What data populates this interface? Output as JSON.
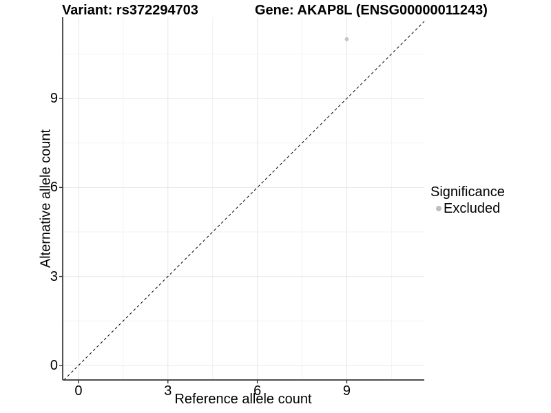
{
  "titles": {
    "variant": "Variant: rs372294703",
    "gene": "Gene: AKAP8L (ENSG00000011243)"
  },
  "chart_data": {
    "type": "scatter",
    "title_left": "Variant: rs372294703",
    "title_right": "Gene: AKAP8L (ENSG00000011243)",
    "xlabel": "Reference allele count",
    "ylabel": "Alternative allele count",
    "xlim": [
      -0.53,
      11.6
    ],
    "ylim": [
      -0.49,
      11.74
    ],
    "x_ticks": [
      0,
      3,
      6,
      9
    ],
    "y_ticks": [
      0,
      3,
      6,
      9
    ],
    "x_minor_gridlines": [
      1.5,
      4.5,
      7.5,
      10.5
    ],
    "y_minor_gridlines": [
      1.5,
      4.5,
      7.5,
      10.5
    ],
    "grid": true,
    "points": [
      {
        "x": 9,
        "y": 11,
        "series": "Excluded"
      }
    ],
    "reference_line": {
      "type": "identity",
      "slope": 1,
      "intercept": 0,
      "style": "dashed"
    },
    "legend": {
      "title": "Significance",
      "position": "right",
      "entries": [
        {
          "label": "Excluded",
          "color": "#bfbfbf"
        }
      ]
    }
  },
  "colors": {
    "background": "#ffffff",
    "major_grid": "#e6e6e6",
    "minor_grid": "#f2f2f2",
    "axis_line": "#333333",
    "tick_mark": "#333333",
    "point_fill": "#c3c3c3",
    "reference_line": "#000000",
    "text": "#000000"
  }
}
